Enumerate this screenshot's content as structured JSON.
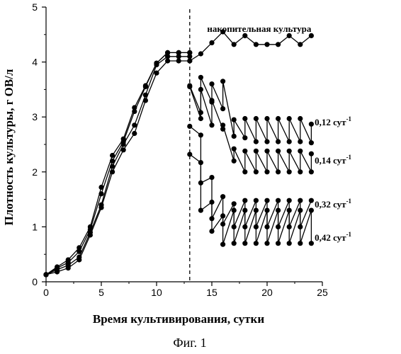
{
  "chart_data": {
    "type": "line",
    "xlabel": "Время культивирования, сутки",
    "ylabel": "Плотность культуры, г ОВ/л",
    "xlim": [
      0,
      25
    ],
    "ylim": [
      0,
      5
    ],
    "xticks": [
      0,
      5,
      10,
      15,
      20,
      25
    ],
    "yticks": [
      0,
      1,
      2,
      3,
      4,
      5
    ],
    "grid": false,
    "legend": "none",
    "caption": "Фиг. 1",
    "vline_x": 13,
    "batch_growth": [
      {
        "values": [
          [
            0,
            0.13
          ],
          [
            1,
            0.18
          ],
          [
            2,
            0.25
          ],
          [
            3,
            0.4
          ],
          [
            4,
            0.85
          ],
          [
            5,
            1.35
          ],
          [
            6,
            2.0
          ],
          [
            7,
            2.4
          ],
          [
            8,
            2.7
          ],
          [
            9,
            3.3
          ],
          [
            10,
            3.8
          ],
          [
            11,
            4.02
          ],
          [
            12,
            4.02
          ],
          [
            13,
            4.02
          ]
        ]
      },
      {
        "values": [
          [
            0,
            0.13
          ],
          [
            1,
            0.22
          ],
          [
            2,
            0.3
          ],
          [
            3,
            0.45
          ],
          [
            4,
            0.9
          ],
          [
            5,
            1.4
          ],
          [
            6,
            2.1
          ],
          [
            7,
            2.5
          ],
          [
            8,
            2.85
          ],
          [
            9,
            3.4
          ],
          [
            10,
            3.95
          ],
          [
            11,
            4.1
          ],
          [
            12,
            4.1
          ],
          [
            13,
            4.1
          ]
        ]
      },
      {
        "values": [
          [
            0,
            0.13
          ],
          [
            1,
            0.25
          ],
          [
            2,
            0.35
          ],
          [
            3,
            0.55
          ],
          [
            4,
            0.95
          ],
          [
            5,
            1.6
          ],
          [
            6,
            2.2
          ],
          [
            7,
            2.55
          ],
          [
            8,
            3.1
          ],
          [
            9,
            3.55
          ],
          [
            10,
            3.98
          ],
          [
            11,
            4.17
          ],
          [
            12,
            4.17
          ],
          [
            13,
            4.17
          ]
        ]
      },
      {
        "values": [
          [
            0,
            0.13
          ],
          [
            1,
            0.27
          ],
          [
            2,
            0.4
          ],
          [
            3,
            0.62
          ],
          [
            4,
            1.0
          ],
          [
            5,
            1.72
          ],
          [
            6,
            2.3
          ],
          [
            7,
            2.6
          ],
          [
            8,
            3.17
          ],
          [
            9,
            3.57
          ],
          [
            10,
            3.98
          ],
          [
            11,
            4.17
          ],
          [
            12,
            4.17
          ],
          [
            13,
            4.17
          ]
        ]
      }
    ],
    "series": [
      {
        "name": "накопительная культура",
        "values": [
          [
            13,
            4.02
          ],
          [
            14,
            4.15
          ],
          [
            15,
            4.35
          ],
          [
            16,
            4.55
          ],
          [
            17,
            4.32
          ],
          [
            18,
            4.48
          ],
          [
            19,
            4.32
          ],
          [
            20,
            4.32
          ],
          [
            21,
            4.32
          ],
          [
            22,
            4.48
          ],
          [
            23,
            4.32
          ],
          [
            24,
            4.48
          ]
        ]
      },
      {
        "name": "0,12 сут",
        "values": [
          [
            13,
            3.57
          ],
          [
            14,
            3.08
          ],
          [
            14,
            3.72
          ],
          [
            15,
            3.27
          ],
          [
            15,
            3.6
          ],
          [
            16,
            3.15
          ],
          [
            16,
            3.65
          ],
          [
            17,
            2.65
          ],
          [
            17,
            2.95
          ],
          [
            18,
            2.62
          ],
          [
            18,
            2.97
          ],
          [
            19,
            2.55
          ],
          [
            19,
            2.97
          ],
          [
            20,
            2.55
          ],
          [
            20,
            2.97
          ],
          [
            21,
            2.55
          ],
          [
            21,
            2.97
          ],
          [
            22,
            2.55
          ],
          [
            22,
            2.97
          ],
          [
            23,
            2.55
          ],
          [
            23,
            2.97
          ],
          [
            24,
            2.53
          ],
          [
            24,
            2.87
          ]
        ]
      },
      {
        "name": "0,14 сут",
        "values": [
          [
            13,
            3.55
          ],
          [
            14,
            2.97
          ],
          [
            14,
            3.5
          ],
          [
            15,
            2.85
          ],
          [
            15,
            3.3
          ],
          [
            16,
            2.78
          ],
          [
            16,
            2.85
          ],
          [
            17,
            2.2
          ],
          [
            17,
            2.42
          ],
          [
            18,
            2.0
          ],
          [
            18,
            2.38
          ],
          [
            19,
            2.0
          ],
          [
            19,
            2.38
          ],
          [
            20,
            2.0
          ],
          [
            20,
            2.38
          ],
          [
            21,
            2.0
          ],
          [
            21,
            2.38
          ],
          [
            22,
            2.0
          ],
          [
            22,
            2.38
          ],
          [
            23,
            2.0
          ],
          [
            23,
            2.38
          ],
          [
            24,
            2.0
          ],
          [
            24,
            2.33
          ]
        ]
      },
      {
        "name": "0,32 сут",
        "values": [
          [
            13,
            2.83
          ],
          [
            14,
            2.67
          ],
          [
            14,
            1.8
          ],
          [
            15,
            1.9
          ],
          [
            15,
            1.15
          ],
          [
            16,
            1.55
          ],
          [
            16,
            1.05
          ],
          [
            17,
            1.42
          ],
          [
            17,
            1.0
          ],
          [
            18,
            1.48
          ],
          [
            18,
            1.0
          ],
          [
            19,
            1.48
          ],
          [
            19,
            1.0
          ],
          [
            20,
            1.48
          ],
          [
            20,
            1.0
          ],
          [
            21,
            1.48
          ],
          [
            21,
            1.0
          ],
          [
            22,
            1.48
          ],
          [
            22,
            1.0
          ],
          [
            23,
            1.48
          ],
          [
            23,
            1.0
          ],
          [
            24,
            1.48
          ]
        ]
      },
      {
        "name": "0,42 сут",
        "values": [
          [
            13,
            2.32
          ],
          [
            14,
            2.17
          ],
          [
            14,
            1.3
          ],
          [
            15,
            1.45
          ],
          [
            15,
            0.92
          ],
          [
            16,
            1.2
          ],
          [
            16,
            0.68
          ],
          [
            17,
            1.3
          ],
          [
            17,
            0.7
          ],
          [
            18,
            1.3
          ],
          [
            18,
            0.7
          ],
          [
            19,
            1.3
          ],
          [
            19,
            0.7
          ],
          [
            20,
            1.3
          ],
          [
            20,
            0.7
          ],
          [
            21,
            1.3
          ],
          [
            21,
            0.7
          ],
          [
            22,
            1.3
          ],
          [
            22,
            0.7
          ],
          [
            23,
            1.3
          ],
          [
            23,
            0.7
          ],
          [
            24,
            1.3
          ],
          [
            24,
            0.7
          ]
        ]
      }
    ],
    "annotations": [
      {
        "text": "накопительная культура",
        "x": 24,
        "y": 4.55,
        "anchor": "end"
      },
      {
        "text": "0,12 сут",
        "superscript": "-1",
        "x": 24.3,
        "y": 2.85,
        "anchor": "start"
      },
      {
        "text": "0,14 сут",
        "superscript": "-1",
        "x": 24.3,
        "y": 2.15,
        "anchor": "start"
      },
      {
        "text": "0,32 сут",
        "superscript": "-1",
        "x": 24.3,
        "y": 1.35,
        "anchor": "start"
      },
      {
        "text": "0,42 сут",
        "superscript": "-1",
        "x": 24.3,
        "y": 0.75,
        "anchor": "start"
      }
    ]
  }
}
